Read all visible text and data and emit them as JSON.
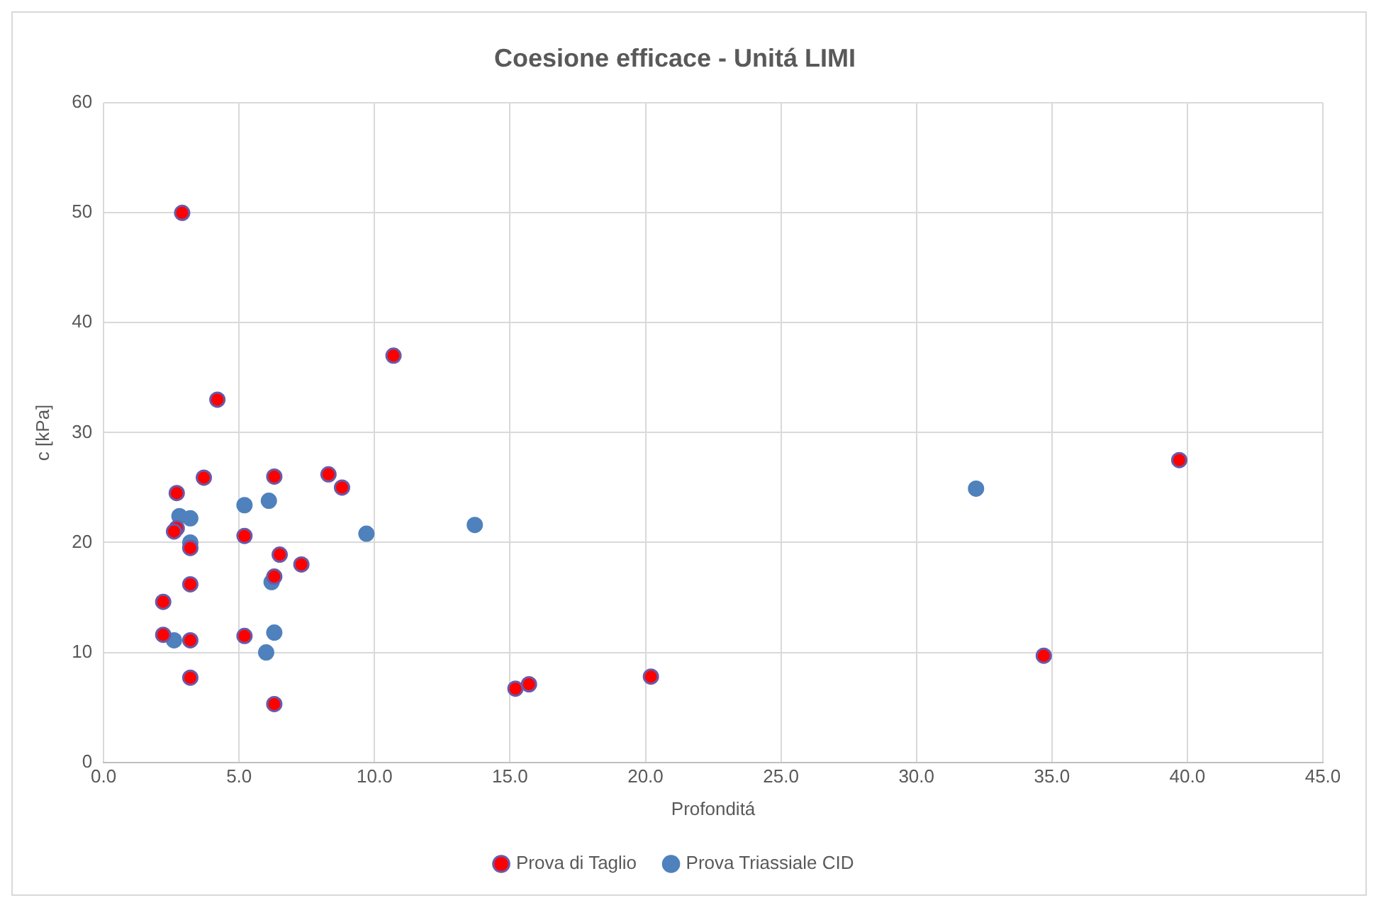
{
  "chart_data": {
    "type": "scatter",
    "title": "Coesione efficace - Unitá LIMI",
    "xlabel": "Profonditá",
    "ylabel": "c [kPa]",
    "xlim": [
      0,
      45
    ],
    "xticks": [
      {
        "value": 0,
        "label": "0.0"
      },
      {
        "value": 5,
        "label": "5.0"
      },
      {
        "value": 10,
        "label": "10.0"
      },
      {
        "value": 15,
        "label": "15.0"
      },
      {
        "value": 20,
        "label": "20.0"
      },
      {
        "value": 25,
        "label": "25.0"
      },
      {
        "value": 30,
        "label": "30.0"
      },
      {
        "value": 35,
        "label": "35.0"
      },
      {
        "value": 40,
        "label": "40.0"
      },
      {
        "value": 45,
        "label": "45.0"
      }
    ],
    "ylim": [
      0,
      60
    ],
    "yticks": [
      0,
      10,
      20,
      30,
      40,
      50,
      60
    ],
    "grid": true,
    "legend": "bottom",
    "marker": "circle",
    "series": [
      {
        "name": "Prova di Taglio",
        "color": "#ff0000",
        "x": [
          2.9,
          4.2,
          10.7,
          3.7,
          2.7,
          6.3,
          8.3,
          8.8,
          2.7,
          2.6,
          3.2,
          5.2,
          6.5,
          7.3,
          6.3,
          3.2,
          2.2,
          2.2,
          3.2,
          5.2,
          3.2,
          6.3,
          15.2,
          15.7,
          20.2,
          34.7,
          39.7
        ],
        "values": [
          50,
          33,
          37,
          25.9,
          24.5,
          26,
          26.2,
          25,
          21.3,
          21,
          19.5,
          20.6,
          18.9,
          18,
          16.9,
          16.2,
          14.6,
          11.6,
          11.1,
          11.5,
          7.7,
          5.3,
          6.7,
          7.1,
          7.8,
          9.7,
          27.5
        ]
      },
      {
        "name": "Prova Triassiale CID",
        "color": "#4f81bd",
        "x": [
          2.8,
          3.2,
          3.2,
          2.6,
          5.2,
          6.1,
          6.2,
          6.3,
          6.0,
          9.7,
          13.7,
          32.2
        ],
        "values": [
          22.4,
          22.2,
          20,
          11.1,
          23.4,
          23.8,
          16.4,
          11.8,
          10,
          20.8,
          21.6,
          24.9
        ]
      }
    ]
  }
}
